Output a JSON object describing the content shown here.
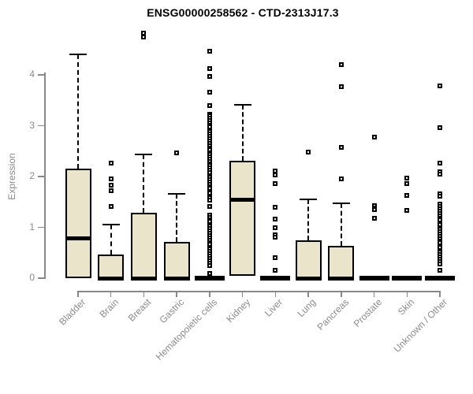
{
  "window": {
    "title": "ENSG00000258562 - CTD-2313J17.3"
  },
  "chart_data": {
    "type": "boxplot",
    "title": "ENSG00000258562 - CTD-2313J17.3",
    "xlabel": "",
    "ylabel": "Expression",
    "ylim": [
      0,
      4.9
    ],
    "yticks": [
      0,
      1,
      2,
      3,
      4
    ],
    "grid": false,
    "legend": "none",
    "colors": {
      "box_fill": "#EAE5CA",
      "box_border": "#000000",
      "axis": "#888888",
      "tick_label": "#8a8a8a",
      "title": "#000000"
    },
    "categories": [
      "Bladder",
      "Brain",
      "Breast",
      "Gastric",
      "Hematopoietic cells",
      "Kidney",
      "Liver",
      "Lung",
      "Pancreas",
      "Prostate",
      "Skin",
      "Unknown / Other"
    ],
    "series": [
      {
        "category": "Bladder",
        "low": 0,
        "q1": 0,
        "median": 0.78,
        "q3": 2.15,
        "high": 4.4,
        "outliers": []
      },
      {
        "category": "Brain",
        "low": 0,
        "q1": 0,
        "median": 0,
        "q3": 0.47,
        "high": 1.06,
        "outliers": [
          2.26,
          1.95,
          1.83,
          1.72,
          1.41
        ]
      },
      {
        "category": "Breast",
        "low": 0,
        "q1": 0,
        "median": 0,
        "q3": 1.28,
        "high": 2.43,
        "outliers": [
          4.82,
          4.74
        ]
      },
      {
        "category": "Gastric",
        "low": 0,
        "q1": 0,
        "median": 0,
        "q3": 0.72,
        "high": 1.66,
        "outliers": [
          2.46
        ]
      },
      {
        "category": "Hematopoietic cells",
        "low": 0,
        "q1": 0,
        "median": 0,
        "q3": 0,
        "high": 0,
        "outliers": [
          4.47,
          4.13,
          3.97,
          3.66,
          3.4,
          3.23,
          3.19,
          3.15,
          3.1,
          3.06,
          3.01,
          2.97,
          2.92,
          2.88,
          2.83,
          2.79,
          2.74,
          2.7,
          2.65,
          2.61,
          2.56,
          2.52,
          2.47,
          2.43,
          2.38,
          2.34,
          2.29,
          2.25,
          2.21,
          2.17,
          2.12,
          2.08,
          1.98,
          1.94,
          1.89,
          1.85,
          1.8,
          1.76,
          1.71,
          1.67,
          1.62,
          1.58,
          1.53,
          1.41,
          1.24,
          1.2,
          1.15,
          1.11,
          1.06,
          1.02,
          0.97,
          0.93,
          0.88,
          0.84,
          0.79,
          0.75,
          0.7,
          0.66,
          0.61,
          0.57,
          0.52,
          0.48,
          0.43,
          0.39,
          0.34,
          0.3,
          0.25,
          0.1
        ]
      },
      {
        "category": "Kidney",
        "low": 0.05,
        "q1": 0.05,
        "median": 1.54,
        "q3": 2.31,
        "high": 3.41,
        "outliers": []
      },
      {
        "category": "Liver",
        "low": 0,
        "q1": 0,
        "median": 0,
        "q3": 0,
        "high": 0,
        "outliers": [
          2.11,
          2.03,
          1.86,
          1.39,
          1.16,
          1.0,
          0.86,
          0.8,
          0.4,
          0.15
        ]
      },
      {
        "category": "Lung",
        "low": 0,
        "q1": 0,
        "median": 0,
        "q3": 0.75,
        "high": 1.55,
        "outliers": [
          2.48
        ]
      },
      {
        "category": "Pancreas",
        "low": 0,
        "q1": 0,
        "median": 0,
        "q3": 0.63,
        "high": 1.47,
        "outliers": [
          4.2,
          3.77,
          2.57,
          1.95
        ]
      },
      {
        "category": "Prostate",
        "low": 0,
        "q1": 0,
        "median": 0,
        "q3": 0,
        "high": 0,
        "outliers": [
          2.78,
          1.42,
          1.38,
          1.35,
          1.18
        ]
      },
      {
        "category": "Skin",
        "low": 0,
        "q1": 0,
        "median": 0,
        "q3": 0,
        "high": 0,
        "outliers": [
          1.97,
          1.86,
          1.63,
          1.34
        ]
      },
      {
        "category": "Unknown / Other",
        "low": 0,
        "q1": 0,
        "median": 0,
        "q3": 0,
        "high": 0,
        "outliers": [
          3.78,
          2.96,
          2.27,
          2.1,
          2.05,
          1.66,
          1.61,
          1.45,
          1.41,
          1.36,
          1.32,
          1.27,
          1.23,
          1.18,
          1.14,
          1.09,
          1.05,
          1.0,
          0.96,
          0.91,
          0.87,
          0.82,
          0.78,
          0.73,
          0.69,
          0.64,
          0.6,
          0.55,
          0.51,
          0.46,
          0.42,
          0.37,
          0.33,
          0.28,
          0.16
        ]
      }
    ]
  }
}
